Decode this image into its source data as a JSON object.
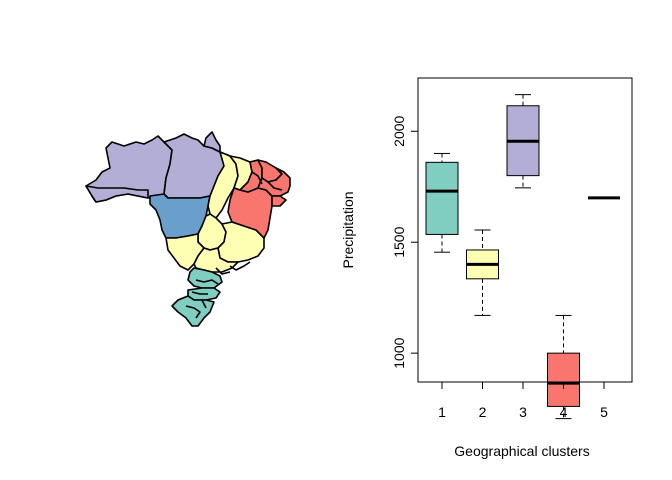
{
  "chart_data": [
    {
      "type": "map",
      "title": "",
      "subject": "Brazil states colored by geographical cluster",
      "palette": {
        "1": "#80cdc1",
        "2": "#ffffb3",
        "3": "#b3aed5",
        "4": "#f8766d",
        "5": "#6a9ecb"
      }
    },
    {
      "type": "boxplot",
      "title": "",
      "xlabel": "Geographical clusters",
      "ylabel": "Precipitation",
      "categories": [
        "1",
        "2",
        "3",
        "4",
        "5"
      ],
      "ylim": [
        870,
        2240
      ],
      "yticks": [
        1000,
        1500,
        2000
      ],
      "ytick_labels": [
        "1000",
        "1500",
        "2000"
      ],
      "boxes": [
        {
          "name": "1",
          "min": 1455,
          "q1": 1535,
          "median": 1730,
          "q3": 1860,
          "max": 1900,
          "color": "#80cdc1"
        },
        {
          "name": "2",
          "min": 1170,
          "q1": 1335,
          "median": 1400,
          "q3": 1465,
          "max": 1555,
          "color": "#ffffb3"
        },
        {
          "name": "3",
          "min": 1745,
          "q1": 1800,
          "median": 1955,
          "q3": 2115,
          "max": 2165,
          "color": "#b3aed5"
        },
        {
          "name": "4",
          "min": 705,
          "q1": 760,
          "median": 865,
          "q3": 1000,
          "max": 1170,
          "color": "#f8766d"
        },
        {
          "name": "5",
          "min": 1700,
          "q1": 1700,
          "median": 1700,
          "q3": 1700,
          "max": 1700,
          "color": "#6a9ecb"
        }
      ]
    }
  ]
}
